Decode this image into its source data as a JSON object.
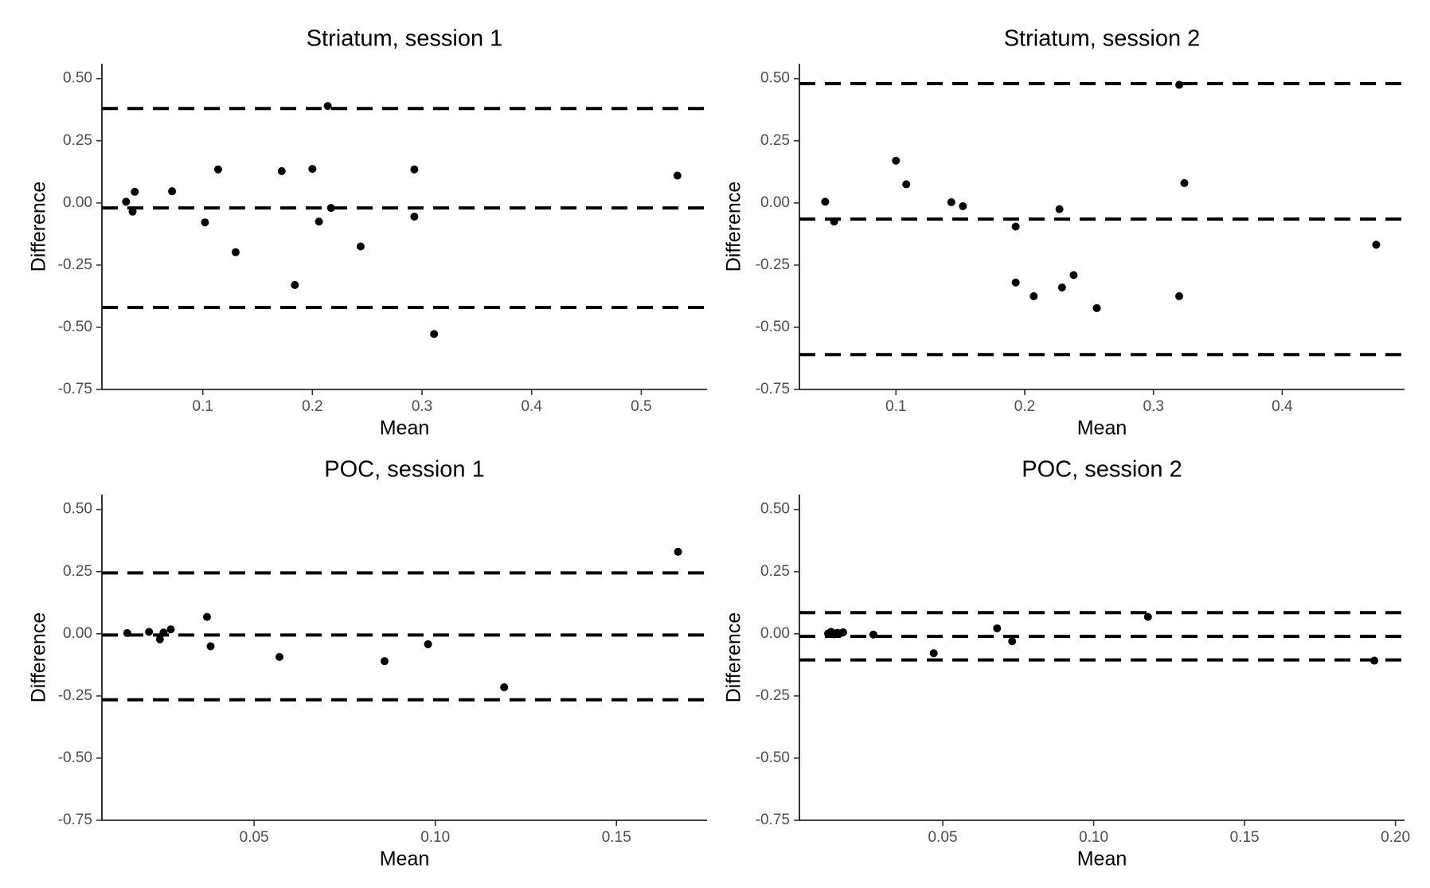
{
  "chart_data": [
    {
      "type": "scatter",
      "title": "Striatum, session 1",
      "xlabel": "Mean",
      "ylabel": "Difference",
      "xlim": [
        0.008,
        0.56
      ],
      "ylim": [
        -0.75,
        0.56
      ],
      "xticks": [
        0.1,
        0.2,
        0.3,
        0.4,
        0.5
      ],
      "xtick_labels": [
        "0.1",
        "0.2",
        "0.3",
        "0.4",
        "0.5"
      ],
      "yticks": [
        0.5,
        0.25,
        0.0,
        -0.25,
        -0.5,
        -0.75
      ],
      "ytick_labels": [
        "0.50",
        "0.25",
        "0.00",
        "-0.25",
        "-0.50",
        "-0.75"
      ],
      "grid": false,
      "hlines": [
        0.38,
        -0.02,
        -0.42
      ],
      "points": [
        {
          "x": 0.03,
          "y": 0.005
        },
        {
          "x": 0.036,
          "y": -0.035
        },
        {
          "x": 0.038,
          "y": 0.045
        },
        {
          "x": 0.072,
          "y": 0.047
        },
        {
          "x": 0.102,
          "y": -0.078
        },
        {
          "x": 0.114,
          "y": 0.135
        },
        {
          "x": 0.13,
          "y": -0.198
        },
        {
          "x": 0.172,
          "y": 0.128
        },
        {
          "x": 0.184,
          "y": -0.33
        },
        {
          "x": 0.2,
          "y": 0.137
        },
        {
          "x": 0.206,
          "y": -0.075
        },
        {
          "x": 0.214,
          "y": 0.39
        },
        {
          "x": 0.217,
          "y": -0.02
        },
        {
          "x": 0.244,
          "y": -0.175
        },
        {
          "x": 0.293,
          "y": 0.135
        },
        {
          "x": 0.293,
          "y": -0.055
        },
        {
          "x": 0.311,
          "y": -0.527
        },
        {
          "x": 0.533,
          "y": 0.11
        }
      ]
    },
    {
      "type": "scatter",
      "title": "Striatum, session 2",
      "xlabel": "Mean",
      "ylabel": "Difference",
      "xlim": [
        0.025,
        0.495
      ],
      "ylim": [
        -0.75,
        0.56
      ],
      "xticks": [
        0.1,
        0.2,
        0.3,
        0.4
      ],
      "xtick_labels": [
        "0.1",
        "0.2",
        "0.3",
        "0.4"
      ],
      "yticks": [
        0.5,
        0.25,
        0.0,
        -0.25,
        -0.5,
        -0.75
      ],
      "ytick_labels": [
        "0.50",
        "0.25",
        "0.00",
        "-0.25",
        "-0.50",
        "-0.75"
      ],
      "grid": false,
      "hlines": [
        0.48,
        -0.065,
        -0.61
      ],
      "points": [
        {
          "x": 0.045,
          "y": 0.005
        },
        {
          "x": 0.052,
          "y": -0.075
        },
        {
          "x": 0.1,
          "y": 0.17
        },
        {
          "x": 0.108,
          "y": 0.075
        },
        {
          "x": 0.143,
          "y": 0.003
        },
        {
          "x": 0.152,
          "y": -0.013
        },
        {
          "x": 0.193,
          "y": -0.095
        },
        {
          "x": 0.193,
          "y": -0.32
        },
        {
          "x": 0.207,
          "y": -0.375
        },
        {
          "x": 0.227,
          "y": -0.025
        },
        {
          "x": 0.229,
          "y": -0.34
        },
        {
          "x": 0.238,
          "y": -0.29
        },
        {
          "x": 0.256,
          "y": -0.423
        },
        {
          "x": 0.32,
          "y": 0.475
        },
        {
          "x": 0.32,
          "y": -0.375
        },
        {
          "x": 0.324,
          "y": 0.08
        },
        {
          "x": 0.473,
          "y": -0.168
        }
      ]
    },
    {
      "type": "scatter",
      "title": "POC, session 1",
      "xlabel": "Mean",
      "ylabel": "Difference",
      "xlim": [
        0.008,
        0.175
      ],
      "ylim": [
        -0.75,
        0.56
      ],
      "xticks": [
        0.05,
        0.1,
        0.15
      ],
      "xtick_labels": [
        "0.05",
        "0.10",
        "0.15"
      ],
      "yticks": [
        0.5,
        0.25,
        0.0,
        -0.25,
        -0.5,
        -0.75
      ],
      "ytick_labels": [
        "0.50",
        "0.25",
        "0.00",
        "-0.25",
        "-0.50",
        "-0.75"
      ],
      "grid": false,
      "hlines": [
        0.245,
        -0.005,
        -0.265
      ],
      "points": [
        {
          "x": 0.015,
          "y": 0.003
        },
        {
          "x": 0.021,
          "y": 0.008
        },
        {
          "x": 0.024,
          "y": -0.022
        },
        {
          "x": 0.025,
          "y": 0.005
        },
        {
          "x": 0.027,
          "y": 0.018
        },
        {
          "x": 0.037,
          "y": 0.068
        },
        {
          "x": 0.038,
          "y": -0.05
        },
        {
          "x": 0.057,
          "y": -0.093
        },
        {
          "x": 0.086,
          "y": -0.11
        },
        {
          "x": 0.098,
          "y": -0.042
        },
        {
          "x": 0.119,
          "y": -0.215
        },
        {
          "x": 0.167,
          "y": 0.33
        }
      ]
    },
    {
      "type": "scatter",
      "title": "POC, session 2",
      "xlabel": "Mean",
      "ylabel": "Difference",
      "xlim": [
        0.0025,
        0.203
      ],
      "ylim": [
        -0.75,
        0.56
      ],
      "xticks": [
        0.05,
        0.1,
        0.15,
        0.2
      ],
      "xtick_labels": [
        "0.05",
        "0.10",
        "0.15",
        "0.20"
      ],
      "yticks": [
        0.5,
        0.25,
        0.0,
        -0.25,
        -0.5,
        -0.75
      ],
      "ytick_labels": [
        "0.50",
        "0.25",
        "0.00",
        "-0.25",
        "-0.50",
        "-0.75"
      ],
      "grid": false,
      "hlines": [
        0.085,
        -0.01,
        -0.105
      ],
      "points": [
        {
          "x": 0.012,
          "y": 0.001
        },
        {
          "x": 0.013,
          "y": 0.008
        },
        {
          "x": 0.014,
          "y": -0.002
        },
        {
          "x": 0.015,
          "y": 0.004
        },
        {
          "x": 0.016,
          "y": 0.002
        },
        {
          "x": 0.017,
          "y": 0.006
        },
        {
          "x": 0.027,
          "y": -0.003
        },
        {
          "x": 0.047,
          "y": -0.078
        },
        {
          "x": 0.068,
          "y": 0.022
        },
        {
          "x": 0.073,
          "y": -0.03
        },
        {
          "x": 0.118,
          "y": 0.068
        },
        {
          "x": 0.193,
          "y": -0.108
        }
      ]
    }
  ]
}
